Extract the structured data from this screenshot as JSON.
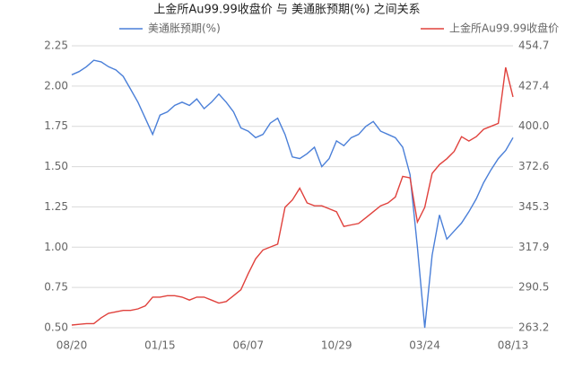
{
  "chart_data": {
    "type": "line",
    "title": "上金所Au99.99收盘价 与 美通胀预期(%) 之间关系",
    "categories": [
      "08/20",
      null,
      null,
      null,
      null,
      null,
      null,
      null,
      null,
      null,
      null,
      null,
      "01/15",
      null,
      null,
      null,
      null,
      null,
      null,
      null,
      null,
      null,
      null,
      null,
      "06/07",
      null,
      null,
      null,
      null,
      null,
      null,
      null,
      null,
      null,
      null,
      null,
      "10/29",
      null,
      null,
      null,
      null,
      null,
      null,
      null,
      null,
      null,
      null,
      null,
      "03/24",
      null,
      null,
      null,
      null,
      null,
      null,
      null,
      null,
      null,
      null,
      null,
      "08/13"
    ],
    "series": [
      {
        "name": "美通胀预期(%)",
        "color": "#4a7fd8",
        "axis": "y",
        "values": [
          2.07,
          2.09,
          2.12,
          2.16,
          2.15,
          2.12,
          2.1,
          2.06,
          1.98,
          1.9,
          1.8,
          1.7,
          1.82,
          1.84,
          1.88,
          1.9,
          1.88,
          1.92,
          1.86,
          1.9,
          1.95,
          1.9,
          1.84,
          1.74,
          1.72,
          1.68,
          1.7,
          1.77,
          1.8,
          1.7,
          1.56,
          1.55,
          1.58,
          1.62,
          1.5,
          1.55,
          1.66,
          1.63,
          1.68,
          1.7,
          1.75,
          1.78,
          1.72,
          1.7,
          1.68,
          1.62,
          1.45,
          1.0,
          0.5,
          0.95,
          1.2,
          1.05,
          1.1,
          1.15,
          1.22,
          1.3,
          1.4,
          1.48,
          1.55,
          1.6,
          1.68
        ]
      },
      {
        "name": "上金所Au99.99收盘价",
        "color": "#e0413c",
        "axis": "y2",
        "values": [
          265,
          265.5,
          266,
          266,
          270,
          273,
          274,
          275,
          275,
          276,
          278,
          284,
          284,
          285,
          285,
          284,
          282,
          284,
          284,
          282,
          280,
          281,
          285,
          289,
          300,
          310,
          316,
          318,
          320,
          345,
          350,
          358,
          348,
          346,
          346,
          344,
          342,
          332,
          333,
          334,
          338,
          342,
          346,
          348,
          352,
          366,
          365,
          335,
          345,
          368,
          374,
          378,
          383,
          393,
          390,
          393,
          398,
          400,
          402,
          440,
          420
        ]
      }
    ],
    "ylim": [
      0.5,
      2.25
    ],
    "yticks": [
      {
        "value": 0.5,
        "label": "0.50"
      },
      0.75,
      {
        "value": 1,
        "label": "1.00"
      },
      1.25,
      {
        "value": 1.5,
        "label": "1.50"
      },
      1.75,
      {
        "value": 2,
        "label": "2.00"
      },
      2.25
    ],
    "y2lim": [
      263.2,
      454.7
    ],
    "y2ticks": [
      263.2,
      290.5,
      317.9,
      345.3,
      372.6,
      {
        "value": 400,
        "label": "400.0"
      },
      427.4,
      454.7
    ],
    "grid": true
  }
}
